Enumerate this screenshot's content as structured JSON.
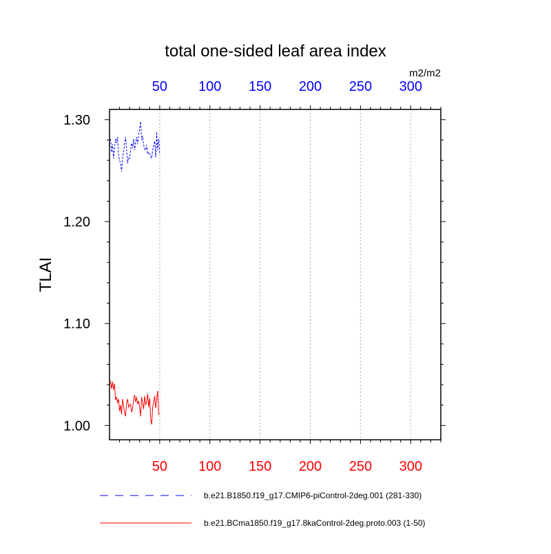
{
  "chart_data": {
    "type": "line",
    "title": "total one-sided leaf area index",
    "units": "m2/m2",
    "ylabel": "TLAI",
    "xlim": [
      0,
      330
    ],
    "ylim": [
      0.986,
      1.31
    ],
    "x_ticks": [
      50,
      100,
      150,
      200,
      250,
      300
    ],
    "x_tick_labels": [
      "50",
      "100",
      "150",
      "200",
      "250",
      "300"
    ],
    "y_ticks": [
      1.0,
      1.1,
      1.2,
      1.3
    ],
    "y_tick_labels": [
      "1.00",
      "1.10",
      "1.20",
      "1.30"
    ],
    "grid": "vertical dotted at major x ticks",
    "top_axis_color": "#0000ff",
    "bottom_axis_color": "#ff0000",
    "series": [
      {
        "name": "b.e21.B1850.f19_g17.CMIP6-piControl-2deg.001 (281-330)",
        "color": "#0000ff",
        "dash": "dashed",
        "x": [
          1,
          2,
          3,
          4,
          5,
          6,
          7,
          8,
          9,
          10,
          11,
          12,
          13,
          14,
          15,
          16,
          17,
          18,
          19,
          20,
          21,
          22,
          23,
          24,
          25,
          26,
          27,
          28,
          29,
          30,
          31,
          32,
          33,
          34,
          35,
          36,
          37,
          38,
          39,
          40,
          41,
          42,
          43,
          44,
          45,
          46,
          47,
          48,
          49,
          50
        ],
        "values": [
          1.281,
          1.268,
          1.276,
          1.262,
          1.272,
          1.281,
          1.277,
          1.283,
          1.266,
          1.26,
          1.257,
          1.249,
          1.262,
          1.268,
          1.276,
          1.283,
          1.271,
          1.257,
          1.263,
          1.262,
          1.27,
          1.277,
          1.272,
          1.281,
          1.27,
          1.278,
          1.283,
          1.276,
          1.285,
          1.291,
          1.298,
          1.28,
          1.284,
          1.275,
          1.271,
          1.27,
          1.275,
          1.266,
          1.268,
          1.267,
          1.264,
          1.262,
          1.27,
          1.275,
          1.279,
          1.263,
          1.288,
          1.27,
          1.281,
          1.267
        ]
      },
      {
        "name": "b.e21.BCma1850.f19_g17.8kaControl-2deg.proto.003 (1-50)",
        "color": "#ff0000",
        "dash": "solid",
        "x": [
          1,
          2,
          3,
          4,
          5,
          6,
          7,
          8,
          9,
          10,
          11,
          12,
          13,
          14,
          15,
          16,
          17,
          18,
          19,
          20,
          21,
          22,
          23,
          24,
          25,
          26,
          27,
          28,
          29,
          30,
          31,
          32,
          33,
          34,
          35,
          36,
          37,
          38,
          39,
          40,
          41,
          42,
          43,
          44,
          45,
          46,
          47,
          48,
          49,
          50
        ],
        "values": [
          1.044,
          1.036,
          1.043,
          1.035,
          1.041,
          1.025,
          1.028,
          1.022,
          1.026,
          1.014,
          1.02,
          1.011,
          1.026,
          1.019,
          1.013,
          1.009,
          1.022,
          1.026,
          1.018,
          1.02,
          1.021,
          1.013,
          1.017,
          1.025,
          1.03,
          1.023,
          1.028,
          1.021,
          1.024,
          1.018,
          1.009,
          1.028,
          1.022,
          1.016,
          1.029,
          1.02,
          1.023,
          1.031,
          1.018,
          1.027,
          1.006,
          1.001,
          1.018,
          1.023,
          1.029,
          1.017,
          1.026,
          1.034,
          1.011,
          1.011
        ]
      }
    ]
  }
}
